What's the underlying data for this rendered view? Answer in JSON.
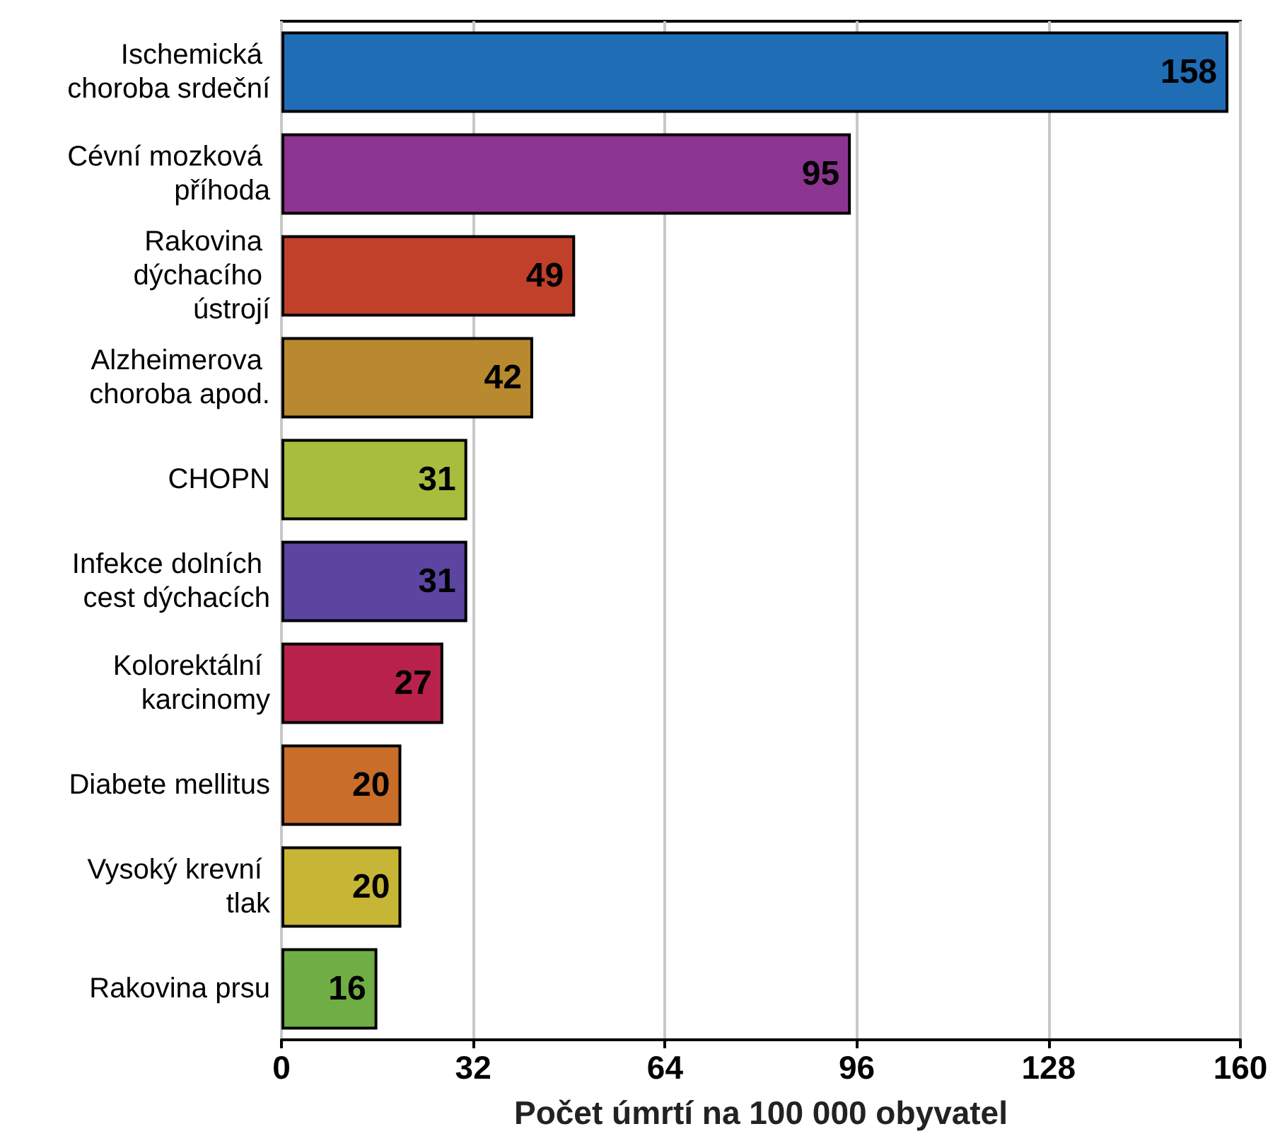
{
  "chart_data": {
    "type": "bar",
    "orientation": "horizontal",
    "xlabel": "Počet úmrtí na 100 000 obyvatel",
    "categories": [
      "Ischemická choroba srdeční",
      "Cévní mozková příhoda",
      "Rakovina dýchacího ústrojí",
      "Alzheimerova choroba apod.",
      "CHOPN",
      "Infekce dolních cest dýchacích",
      "Kolorektální karcinomy",
      "Diabete mellitus",
      "Vysoký krevní tlak",
      "Rakovina prsu"
    ],
    "values": [
      158,
      95,
      49,
      42,
      31,
      31,
      27,
      20,
      20,
      16
    ],
    "colors": [
      "#1f6db5",
      "#8b3591",
      "#c0402a",
      "#b8892e",
      "#a8bd3e",
      "#5b45a0",
      "#b8224a",
      "#c86d2a",
      "#c7b535",
      "#6fae45"
    ],
    "data_labels": true,
    "xlim": [
      0,
      160
    ],
    "xticks": [
      0,
      32,
      64,
      96,
      128,
      160
    ],
    "grid": "x"
  }
}
